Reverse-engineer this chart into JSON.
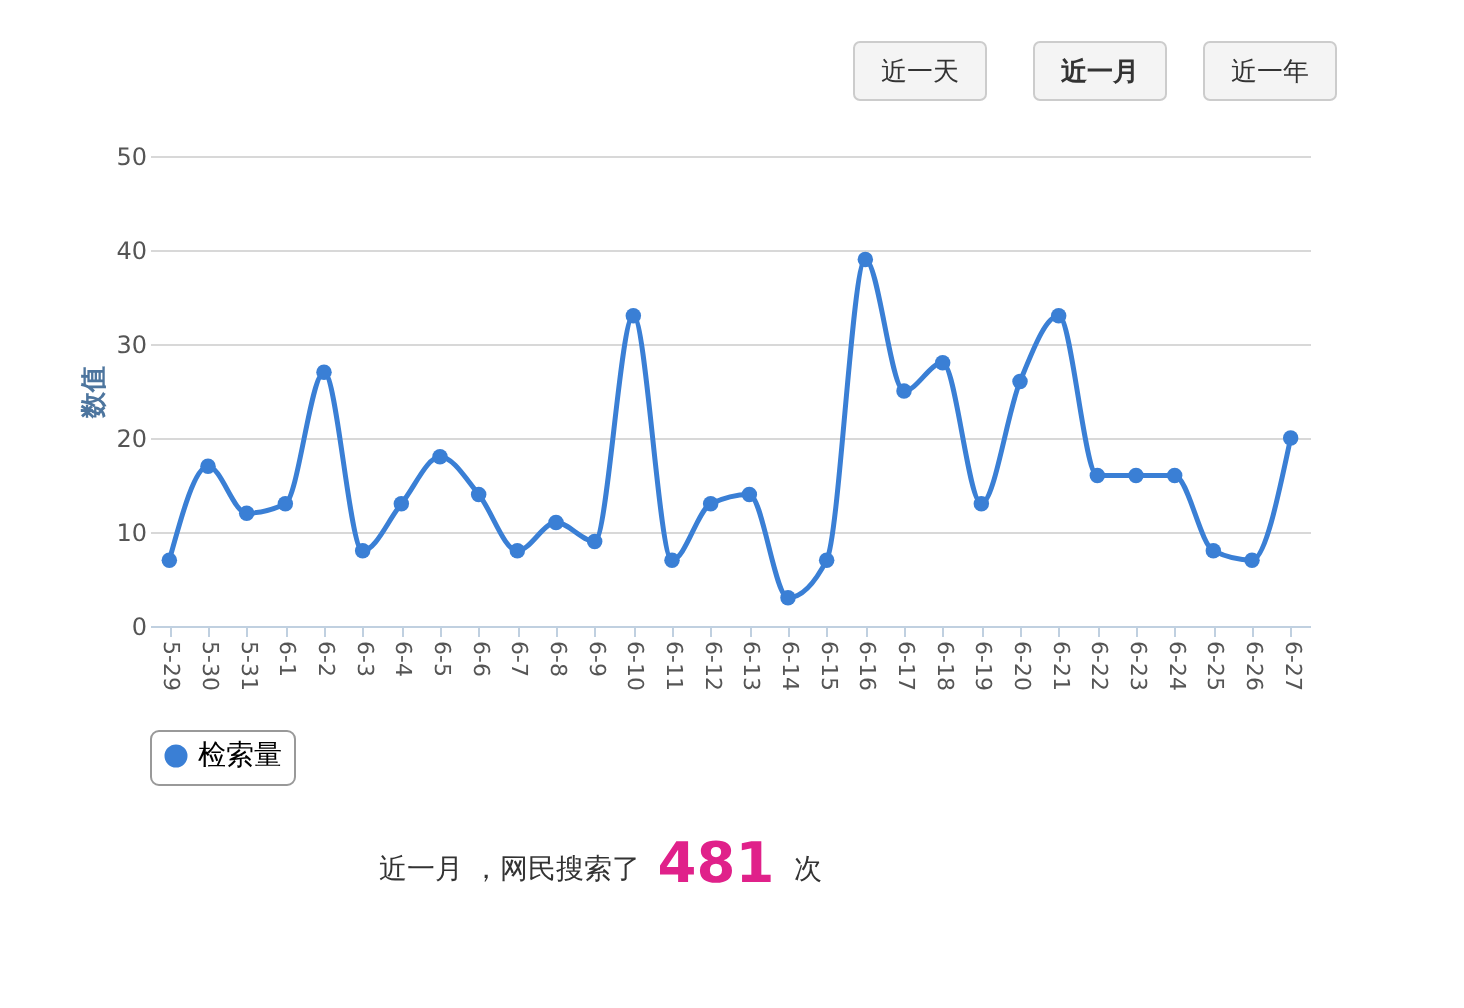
{
  "chart_data": {
    "type": "line",
    "ylabel": "数值",
    "categories": [
      "5-29",
      "5-30",
      "5-31",
      "6-1",
      "6-2",
      "6-3",
      "6-4",
      "6-5",
      "6-6",
      "6-7",
      "6-8",
      "6-9",
      "6-10",
      "6-11",
      "6-12",
      "6-13",
      "6-14",
      "6-15",
      "6-16",
      "6-17",
      "6-18",
      "6-19",
      "6-20",
      "6-21",
      "6-22",
      "6-23",
      "6-24",
      "6-25",
      "6-26",
      "6-27"
    ],
    "series": [
      {
        "name": "检索量",
        "color": "#3a7fd5",
        "values": [
          7,
          17,
          12,
          13,
          27,
          8,
          13,
          18,
          14,
          8,
          11,
          9,
          33,
          7,
          13,
          14,
          3,
          7,
          39,
          25,
          28,
          13,
          26,
          33,
          16,
          16,
          16,
          8,
          7,
          20
        ]
      }
    ],
    "ylim": [
      0,
      50
    ],
    "yticks": [
      0,
      10,
      20,
      30,
      40,
      50
    ],
    "grid": "y",
    "legend": "bottom",
    "marker": "circle",
    "line_style": "solid",
    "annotations": [
      "近一天",
      "近一月",
      "近一年",
      "近一月 ，网民搜索了",
      "481",
      "次"
    ]
  }
}
